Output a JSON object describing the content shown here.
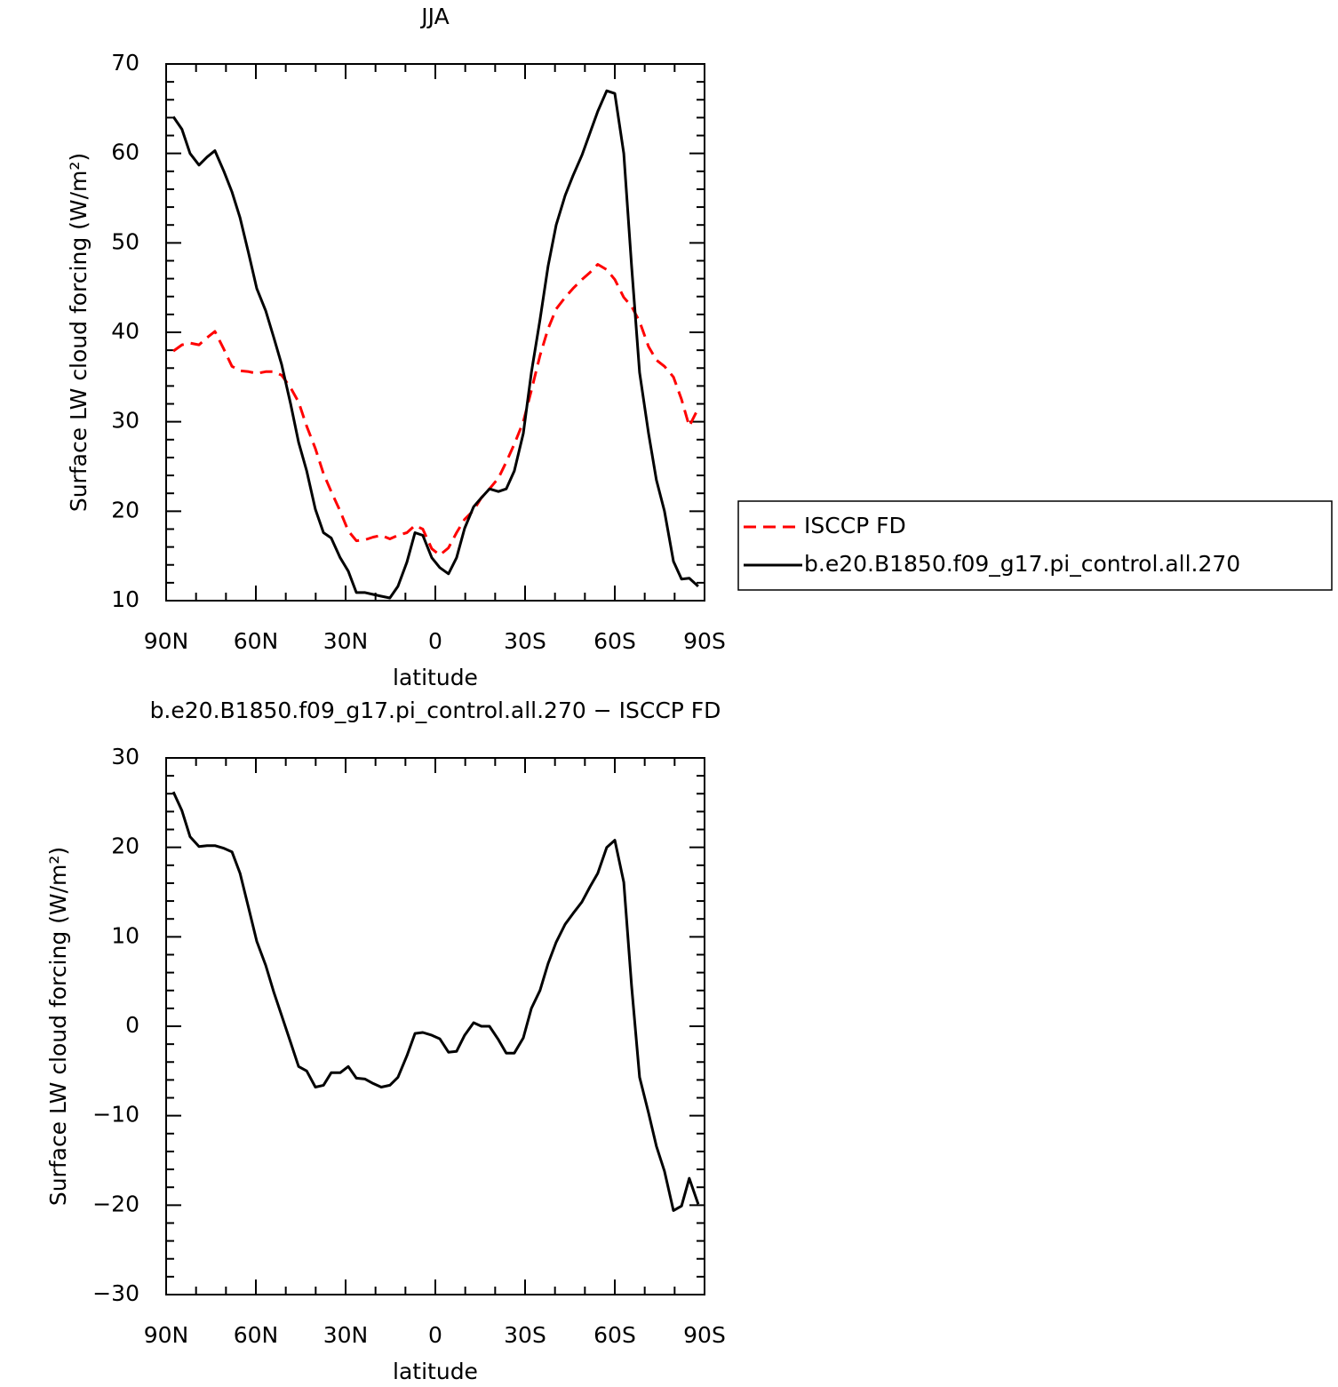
{
  "chart_data": [
    {
      "type": "line",
      "title": "JJA",
      "xlabel": "latitude",
      "ylabel": "Surface LW cloud forcing (W/m²)",
      "xlim": [
        90,
        -90
      ],
      "xticks": [
        {
          "value": 90,
          "label": "90N"
        },
        {
          "value": 60,
          "label": "60N"
        },
        {
          "value": 30,
          "label": "30N"
        },
        0,
        {
          "value": -30,
          "label": "30S"
        },
        {
          "value": -60,
          "label": "60S"
        },
        {
          "value": -90,
          "label": "90S"
        }
      ],
      "ylim": [
        10,
        70
      ],
      "yticks": [
        10,
        20,
        30,
        40,
        50,
        60,
        70
      ],
      "legend": "right",
      "x": [
        87.6,
        84.7,
        82.0,
        79.0,
        76.3,
        73.7,
        70.7,
        68.0,
        65.3,
        62.4,
        59.7,
        56.7,
        54.0,
        51.4,
        48.4,
        45.7,
        43.0,
        40.1,
        37.4,
        34.8,
        31.8,
        29.1,
        26.4,
        23.5,
        20.8,
        18.1,
        15.2,
        12.5,
        9.5,
        6.8,
        4.2,
        1.2,
        -1.5,
        -4.4,
        -7.1,
        -9.8,
        -12.8,
        -15.4,
        -18.1,
        -21.1,
        -23.7,
        -26.4,
        -29.4,
        -32.1,
        -35.0,
        -37.7,
        -40.4,
        -43.4,
        -46.0,
        -49.0,
        -51.7,
        -54.3,
        -57.3,
        -60.0,
        -63.0,
        -65.6,
        -68.3,
        -71.3,
        -73.9,
        -76.6,
        -79.6,
        -82.3,
        -84.9,
        -87.9
      ],
      "series": [
        {
          "name": "ISCCP FD",
          "color": "#ff0000",
          "linestyle": "dashed",
          "values": [
            37.9,
            38.6,
            38.8,
            38.6,
            39.4,
            40.1,
            38.1,
            36.2,
            35.7,
            35.6,
            35.4,
            35.6,
            35.6,
            35.2,
            33.8,
            32.2,
            29.5,
            27.0,
            24.2,
            22.2,
            20.0,
            17.8,
            16.7,
            16.8,
            17.1,
            17.3,
            16.9,
            17.3,
            17.6,
            18.4,
            18.0,
            15.8,
            15.1,
            15.9,
            17.6,
            19.1,
            20.1,
            21.5,
            22.5,
            23.7,
            25.5,
            27.5,
            30.0,
            33.5,
            37.4,
            40.4,
            42.6,
            43.9,
            44.9,
            45.9,
            46.7,
            47.6,
            47.0,
            45.9,
            43.9,
            42.9,
            41.2,
            38.4,
            36.9,
            36.2,
            35.0,
            32.5,
            29.5,
            31.5
          ]
        },
        {
          "name": "b.e20.B1850.f09_g17.pi_control.all.270",
          "color": "#000000",
          "linestyle": "solid",
          "values": [
            64.1,
            62.7,
            60.0,
            58.7,
            59.6,
            60.3,
            58.0,
            55.7,
            52.8,
            48.8,
            44.9,
            42.4,
            39.4,
            36.4,
            32.0,
            27.7,
            24.5,
            20.2,
            17.6,
            17.0,
            14.8,
            13.3,
            10.9,
            10.9,
            10.7,
            10.5,
            10.3,
            11.6,
            14.3,
            17.6,
            17.3,
            14.8,
            13.7,
            13.0,
            14.8,
            18.1,
            20.5,
            21.5,
            22.5,
            22.2,
            22.5,
            24.5,
            28.7,
            35.5,
            41.4,
            47.4,
            52.0,
            55.3,
            57.5,
            59.8,
            62.3,
            64.7,
            67.0,
            66.7,
            60.0,
            47.4,
            35.5,
            28.7,
            23.5,
            20.0,
            14.4,
            12.4,
            12.5,
            11.6
          ]
        }
      ]
    },
    {
      "type": "line",
      "title": "b.e20.B1850.f09_g17.pi_control.all.270 − ISCCP FD",
      "xlabel": "latitude",
      "ylabel": "Surface LW cloud forcing (W/m²)",
      "xlim": [
        90,
        -90
      ],
      "xticks": [
        {
          "value": 90,
          "label": "90N"
        },
        {
          "value": 60,
          "label": "60N"
        },
        {
          "value": 30,
          "label": "30N"
        },
        0,
        {
          "value": -30,
          "label": "30S"
        },
        {
          "value": -60,
          "label": "60S"
        },
        {
          "value": -90,
          "label": "90S"
        }
      ],
      "ylim": [
        -30,
        30
      ],
      "yticks": [
        {
          "value": -30,
          "label": "−30"
        },
        {
          "value": -20,
          "label": "−20"
        },
        {
          "value": -10,
          "label": "−10"
        },
        0,
        10,
        20,
        30
      ],
      "x": [
        87.6,
        84.7,
        82.0,
        79.0,
        76.3,
        73.7,
        70.7,
        68.0,
        65.3,
        62.4,
        59.7,
        56.7,
        54.0,
        51.4,
        48.4,
        45.7,
        43.0,
        40.1,
        37.4,
        34.8,
        31.8,
        29.1,
        26.4,
        23.5,
        20.8,
        18.1,
        15.2,
        12.5,
        9.5,
        6.8,
        4.2,
        1.2,
        -1.5,
        -4.4,
        -7.1,
        -9.8,
        -12.8,
        -15.4,
        -18.1,
        -21.1,
        -23.7,
        -26.4,
        -29.4,
        -32.1,
        -35.0,
        -37.7,
        -40.4,
        -43.4,
        -46.0,
        -49.0,
        -51.7,
        -54.3,
        -57.3,
        -60.0,
        -63.0,
        -65.6,
        -68.3,
        -71.3,
        -73.9,
        -76.6,
        -79.6,
        -82.3,
        -84.9,
        -87.9
      ],
      "color": "#000000",
      "values": [
        26.2,
        24.1,
        21.2,
        20.1,
        20.2,
        20.2,
        19.9,
        19.5,
        17.1,
        13.2,
        9.5,
        6.8,
        3.8,
        1.2,
        -1.8,
        -4.5,
        -5.0,
        -6.8,
        -6.6,
        -5.2,
        -5.2,
        -4.5,
        -5.8,
        -5.9,
        -6.4,
        -6.8,
        -6.6,
        -5.7,
        -3.3,
        -0.8,
        -0.7,
        -1.0,
        -1.4,
        -2.9,
        -2.8,
        -1.0,
        0.4,
        0.0,
        0.0,
        -1.5,
        -3.0,
        -3.0,
        -1.3,
        2.0,
        4.0,
        7.0,
        9.4,
        11.4,
        12.6,
        13.9,
        15.6,
        17.1,
        20.0,
        20.8,
        16.1,
        4.5,
        -5.7,
        -9.7,
        -13.4,
        -16.2,
        -20.6,
        -20.1,
        -17.0,
        -19.9
      ]
    }
  ]
}
